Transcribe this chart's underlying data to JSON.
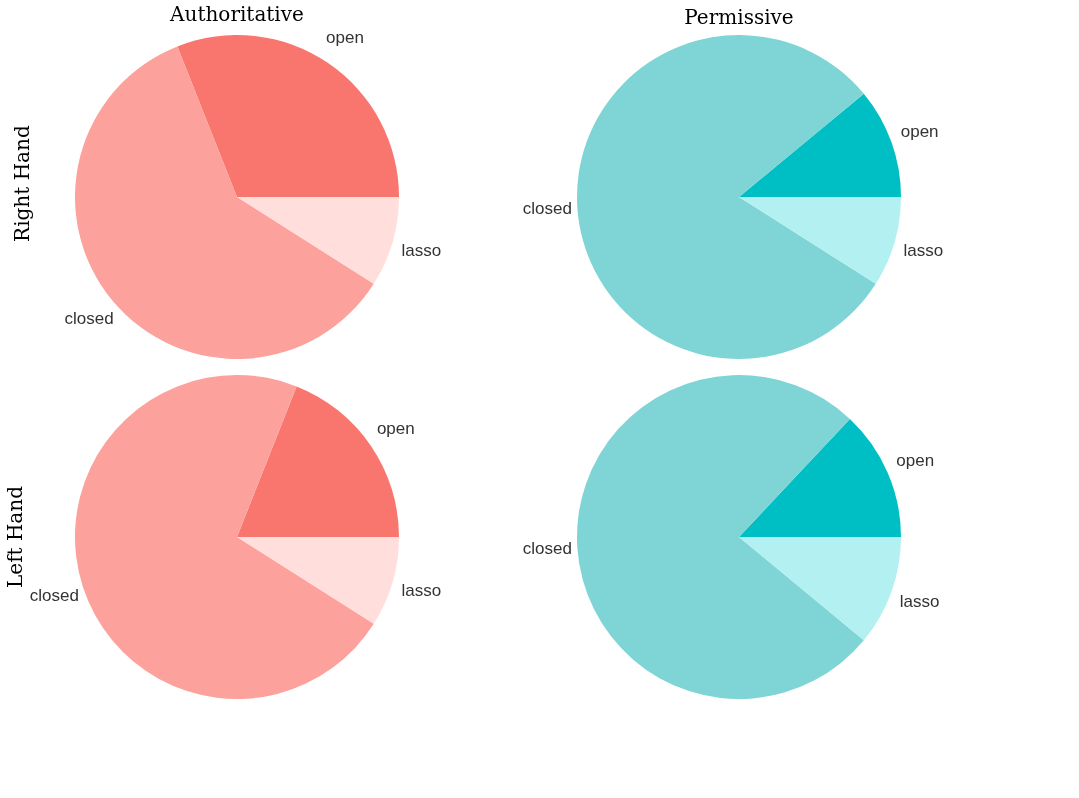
{
  "chart_data": [
    {
      "type": "pie",
      "title": "Authoritative",
      "ylabel": "Right Hand",
      "categories": [
        "open",
        "closed",
        "lasso"
      ],
      "values": [
        31,
        60,
        9
      ],
      "colors": [
        "#f8766d",
        "#fca19b",
        "#ffdedc"
      ]
    },
    {
      "type": "pie",
      "title": "Permissive",
      "categories": [
        "open",
        "closed",
        "lasso"
      ],
      "values": [
        11,
        80,
        9
      ],
      "colors": [
        "#00bfc4",
        "#7fd4d6",
        "#b3f0f1"
      ]
    },
    {
      "type": "pie",
      "ylabel": "Left Hand",
      "categories": [
        "open",
        "closed",
        "lasso"
      ],
      "values": [
        19,
        72,
        9
      ],
      "colors": [
        "#f8766d",
        "#fca19b",
        "#ffdedc"
      ]
    },
    {
      "type": "pie",
      "categories": [
        "open",
        "closed",
        "lasso"
      ],
      "values": [
        13,
        76,
        11
      ],
      "colors": [
        "#00bfc4",
        "#7fd4d6",
        "#b3f0f1"
      ]
    }
  ]
}
